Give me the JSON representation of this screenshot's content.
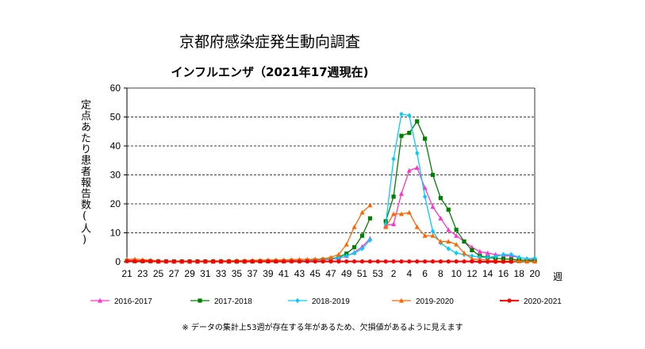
{
  "title": "京都府感染症発生動向調査",
  "subtitle": "インフルエンザ（2021年17週現在)",
  "note": "※ データの集計上53週が存在する年があるため、欠損値があるように見えます",
  "chart_data": {
    "type": "line",
    "ylabel": "定点あたり患者報告数(人)",
    "xlabel": "週",
    "ylim": [
      0,
      60
    ],
    "yticks": [
      0,
      10,
      20,
      30,
      40,
      50,
      60
    ],
    "grid": "horizontal dashed at 10,20,30,40,50",
    "legend_placement": "bottom",
    "categories": [
      "21",
      "22",
      "23",
      "24",
      "25",
      "26",
      "27",
      "28",
      "29",
      "30",
      "31",
      "32",
      "33",
      "34",
      "35",
      "36",
      "37",
      "38",
      "39",
      "40",
      "41",
      "42",
      "43",
      "44",
      "45",
      "46",
      "47",
      "48",
      "49",
      "50",
      "51",
      "52",
      "53",
      "1",
      "2",
      "3",
      "4",
      "5",
      "6",
      "7",
      "8",
      "9",
      "10",
      "11",
      "12",
      "13",
      "14",
      "15",
      "16",
      "17",
      "18",
      "19",
      "20"
    ],
    "xtick_labels": [
      "21",
      "23",
      "25",
      "27",
      "29",
      "31",
      "33",
      "35",
      "37",
      "39",
      "41",
      "43",
      "45",
      "47",
      "49",
      "51",
      "53",
      "2",
      "4",
      "6",
      "8",
      "10",
      "12",
      "14",
      "16",
      "18",
      "20"
    ],
    "series": [
      {
        "name": "2016-2017",
        "color": "#ff33cc",
        "marker": "triangle",
        "values": [
          0.5,
          0.4,
          0.3,
          0.3,
          0.2,
          0.2,
          0.1,
          0.1,
          0.1,
          0.1,
          0.1,
          0.1,
          0.1,
          0.1,
          0.1,
          0.1,
          0.2,
          0.2,
          0.2,
          0.2,
          0.2,
          0.3,
          0.3,
          0.4,
          0.5,
          0.6,
          0.9,
          1.2,
          2.0,
          3.2,
          5.2,
          8.0,
          null,
          12.5,
          13.0,
          23.5,
          31.5,
          32.5,
          25.5,
          19.0,
          15.0,
          11.0,
          9.0,
          7.0,
          5.0,
          3.5,
          3.0,
          2.5,
          2.2,
          2.0,
          1.5,
          1.0,
          0.8
        ]
      },
      {
        "name": "2017-2018",
        "color": "#008000",
        "marker": "square",
        "values": [
          0.3,
          0.2,
          0.2,
          0.2,
          0.1,
          0.1,
          0.1,
          0.1,
          0.1,
          0.1,
          0.1,
          0.1,
          0.1,
          0.1,
          0.1,
          0.1,
          0.1,
          0.2,
          0.2,
          0.2,
          0.2,
          0.3,
          0.3,
          0.4,
          0.5,
          0.7,
          1.0,
          1.6,
          2.8,
          5.0,
          9.0,
          15.0,
          null,
          14.0,
          22.5,
          43.5,
          44.5,
          48.5,
          42.5,
          30.0,
          22.0,
          18.0,
          11.0,
          7.0,
          4.0,
          2.0,
          1.5,
          1.2,
          1.0,
          0.8,
          0.6,
          0.5,
          0.4
        ]
      },
      {
        "name": "2018-2019",
        "color": "#00ccff",
        "marker": "diamond",
        "values": [
          0.3,
          0.3,
          0.2,
          0.2,
          0.1,
          0.1,
          0.1,
          0.1,
          0.1,
          0.1,
          0.1,
          0.1,
          0.1,
          0.1,
          0.1,
          0.1,
          0.1,
          0.2,
          0.2,
          0.2,
          0.2,
          0.2,
          0.3,
          0.4,
          0.5,
          0.7,
          1.0,
          1.4,
          2.0,
          3.0,
          4.5,
          7.5,
          null,
          13.0,
          35.5,
          51.0,
          50.5,
          37.5,
          22.5,
          10.5,
          6.5,
          4.5,
          3.0,
          2.5,
          2.0,
          1.5,
          1.5,
          1.8,
          2.5,
          2.5,
          1.5,
          1.0,
          1.2
        ]
      },
      {
        "name": "2019-2020",
        "color": "#ff6600",
        "marker": "triangle",
        "values": [
          0.8,
          0.9,
          0.7,
          0.5,
          0.3,
          0.2,
          0.2,
          0.2,
          0.2,
          0.2,
          0.2,
          0.3,
          0.3,
          0.3,
          0.4,
          0.4,
          0.5,
          0.5,
          0.6,
          0.6,
          0.6,
          0.7,
          0.8,
          0.8,
          0.9,
          1.0,
          1.5,
          2.5,
          6.0,
          12.0,
          17.0,
          19.5,
          null,
          12.0,
          16.5,
          16.5,
          17.0,
          12.0,
          9.0,
          9.0,
          7.0,
          7.0,
          6.0,
          3.0,
          1.0,
          0.8,
          0.5,
          0.3,
          0.2,
          0.2,
          0.2,
          0.1,
          0.1
        ]
      },
      {
        "name": "2020-2021",
        "color": "#ff0000",
        "marker": "circle",
        "values": [
          0.2,
          0.2,
          0.2,
          0.2,
          0.1,
          0.1,
          0.1,
          0.1,
          0.1,
          0.1,
          0.1,
          0.1,
          0.1,
          0.1,
          0.1,
          0.1,
          0.1,
          0.1,
          0.1,
          0.1,
          0.1,
          0.1,
          0.1,
          0.1,
          0.1,
          0.1,
          0.1,
          0.1,
          0.1,
          0.1,
          0.1,
          0.1,
          0.1,
          0.1,
          0.1,
          0.1,
          0.1,
          0.1,
          0.1,
          0.1,
          0.1,
          0.1,
          0.1,
          0.1,
          0.1,
          0.0,
          0.0,
          0.0,
          0.0,
          0.0,
          null,
          null,
          null
        ]
      }
    ]
  }
}
